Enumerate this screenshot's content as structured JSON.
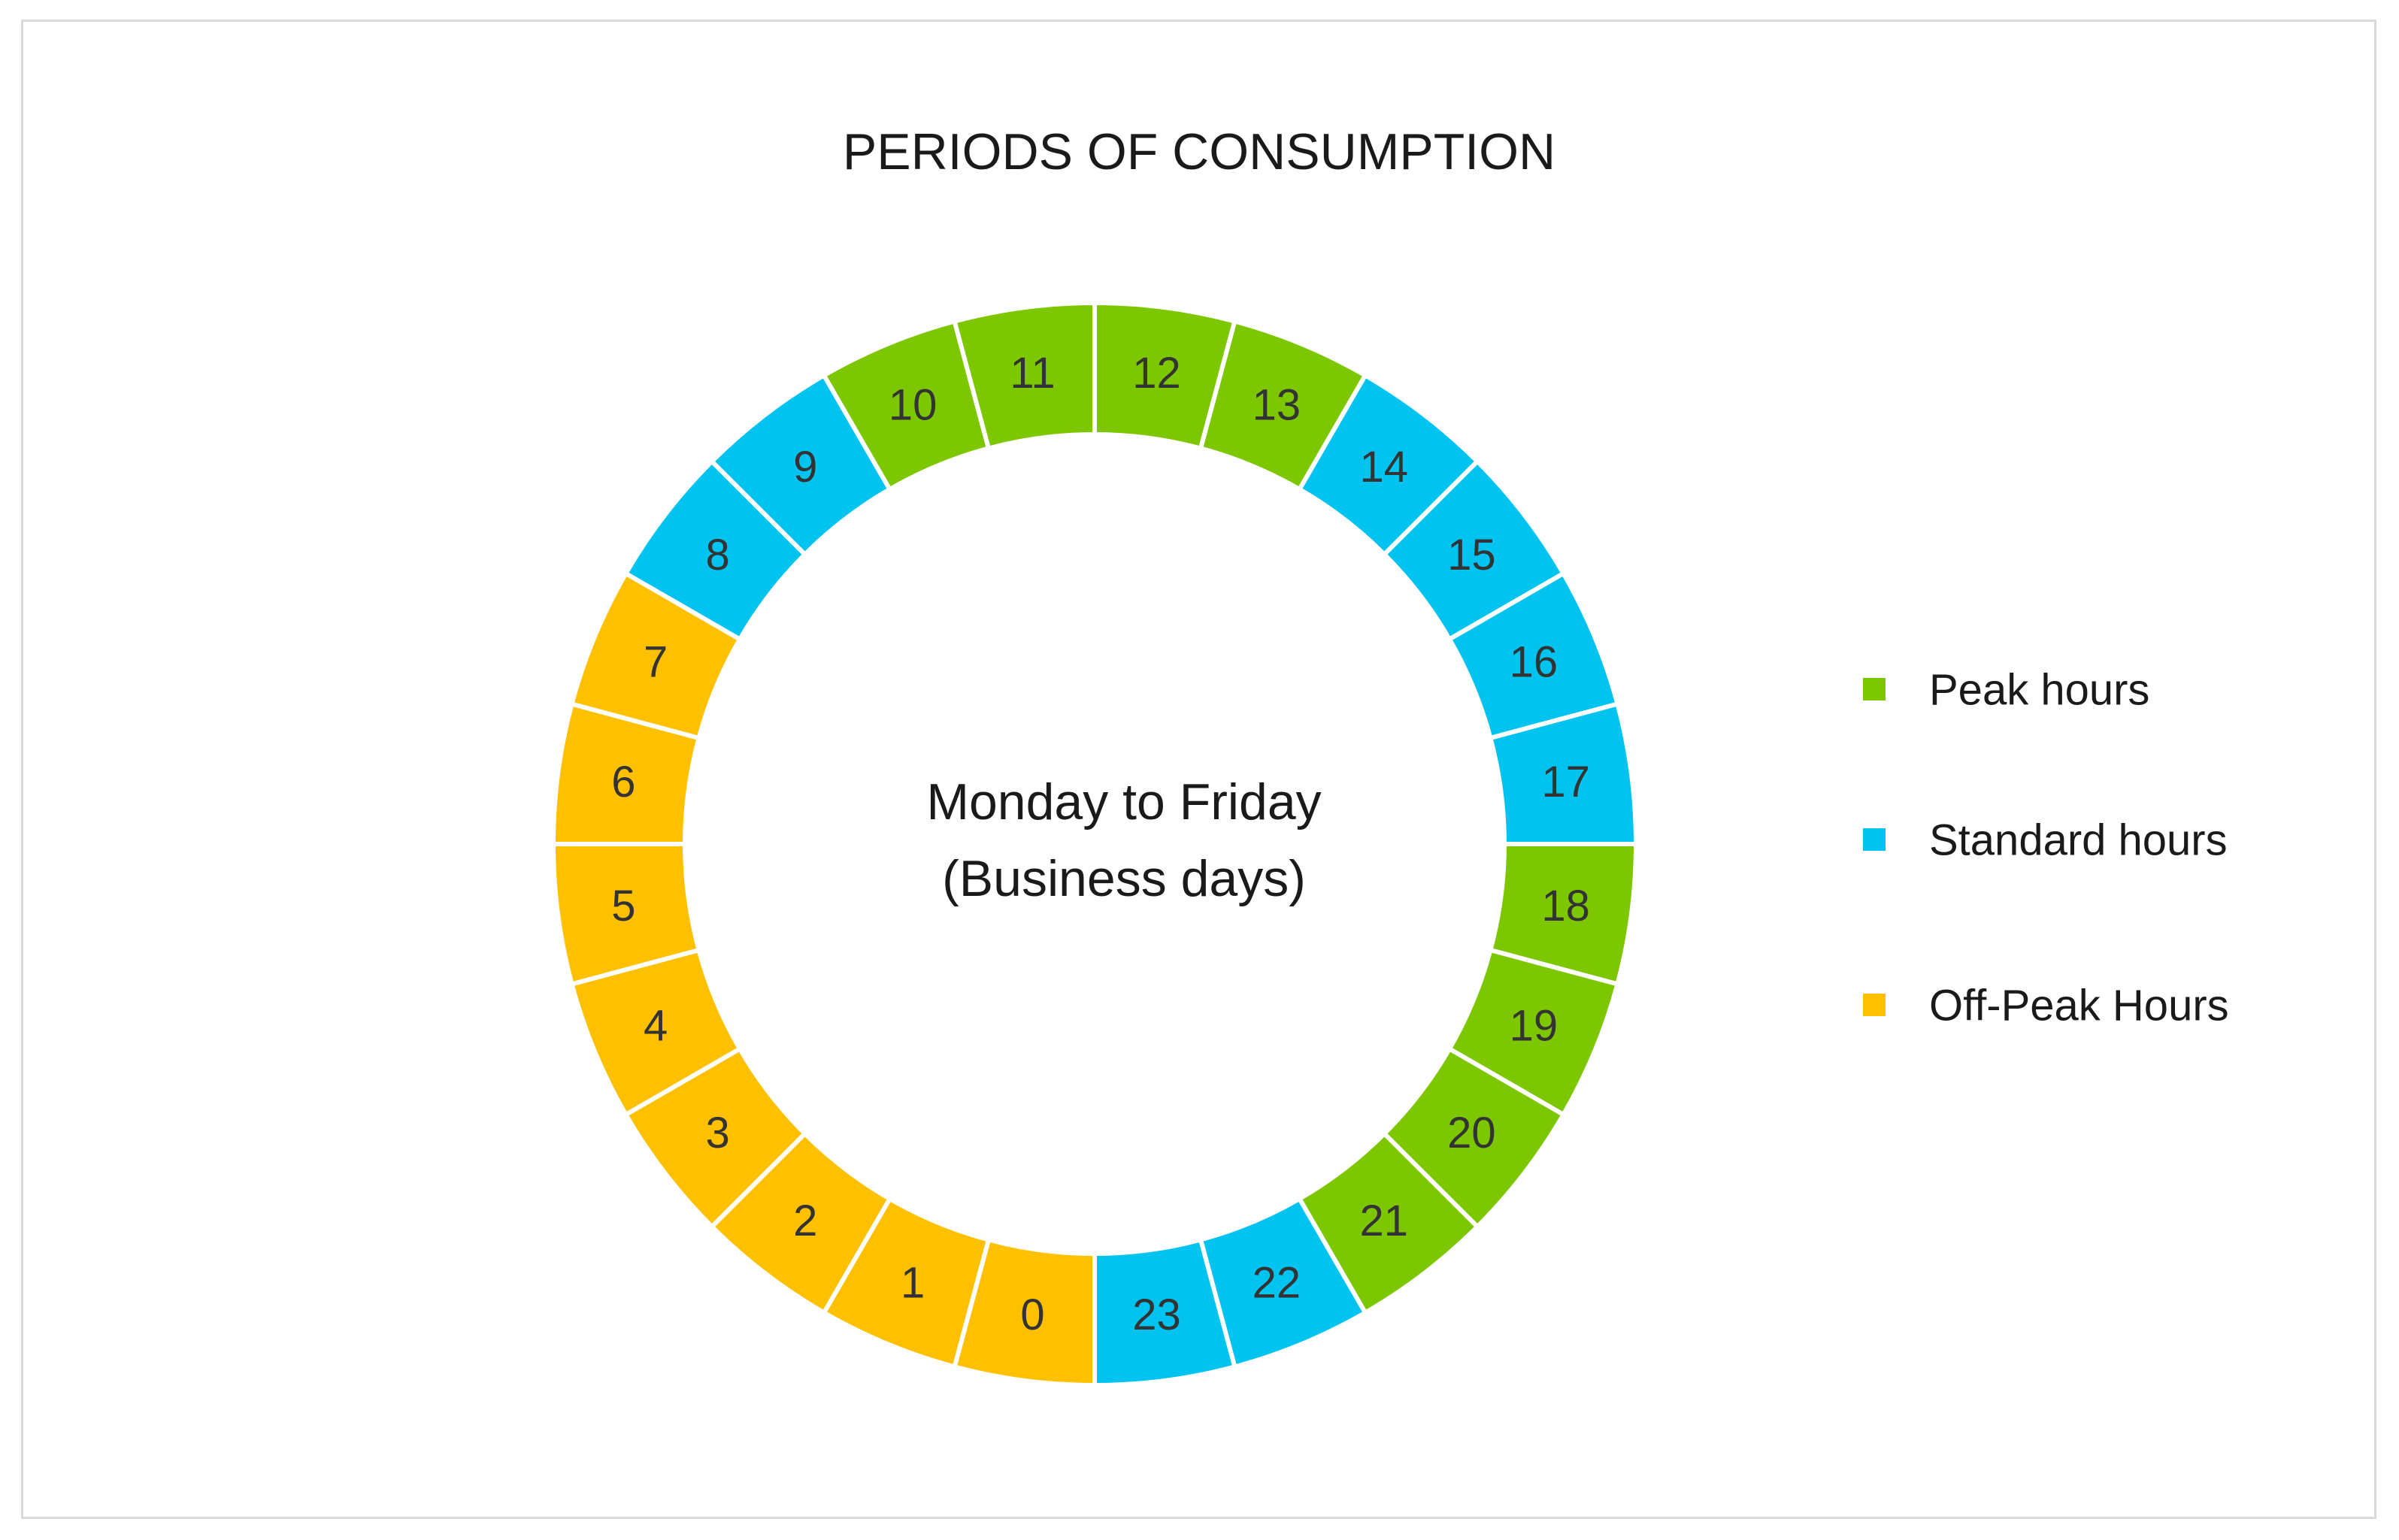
{
  "chart_data": {
    "type": "donut",
    "title": "PERIODS OF CONSUMPTION",
    "center_label": [
      "Monday to Friday",
      "(Business days)"
    ],
    "categories": [
      "Peak hours",
      "Standard hours",
      "Off-Peak Hours"
    ],
    "colors": {
      "Peak hours": "#7dc700",
      "Standard hours": "#00c3ef",
      "Off-Peak Hours": "#ffc000"
    },
    "hours": [
      {
        "hour": "0",
        "category": "Off-Peak Hours"
      },
      {
        "hour": "1",
        "category": "Off-Peak Hours"
      },
      {
        "hour": "2",
        "category": "Off-Peak Hours"
      },
      {
        "hour": "3",
        "category": "Off-Peak Hours"
      },
      {
        "hour": "4",
        "category": "Off-Peak Hours"
      },
      {
        "hour": "5",
        "category": "Off-Peak Hours"
      },
      {
        "hour": "6",
        "category": "Off-Peak Hours"
      },
      {
        "hour": "7",
        "category": "Off-Peak Hours"
      },
      {
        "hour": "8",
        "category": "Standard hours"
      },
      {
        "hour": "9",
        "category": "Standard hours"
      },
      {
        "hour": "10",
        "category": "Peak hours"
      },
      {
        "hour": "11",
        "category": "Peak hours"
      },
      {
        "hour": "12",
        "category": "Peak hours"
      },
      {
        "hour": "13",
        "category": "Peak hours"
      },
      {
        "hour": "14",
        "category": "Standard hours"
      },
      {
        "hour": "15",
        "category": "Standard hours"
      },
      {
        "hour": "16",
        "category": "Standard hours"
      },
      {
        "hour": "17",
        "category": "Standard hours"
      },
      {
        "hour": "18",
        "category": "Peak hours"
      },
      {
        "hour": "19",
        "category": "Peak hours"
      },
      {
        "hour": "20",
        "category": "Peak hours"
      },
      {
        "hour": "21",
        "category": "Peak hours"
      },
      {
        "hour": "22",
        "category": "Standard hours"
      },
      {
        "hour": "23",
        "category": "Standard hours"
      }
    ],
    "legend": [
      "Peak hours",
      "Standard hours",
      "Off-Peak Hours"
    ],
    "legend_position": "right"
  }
}
